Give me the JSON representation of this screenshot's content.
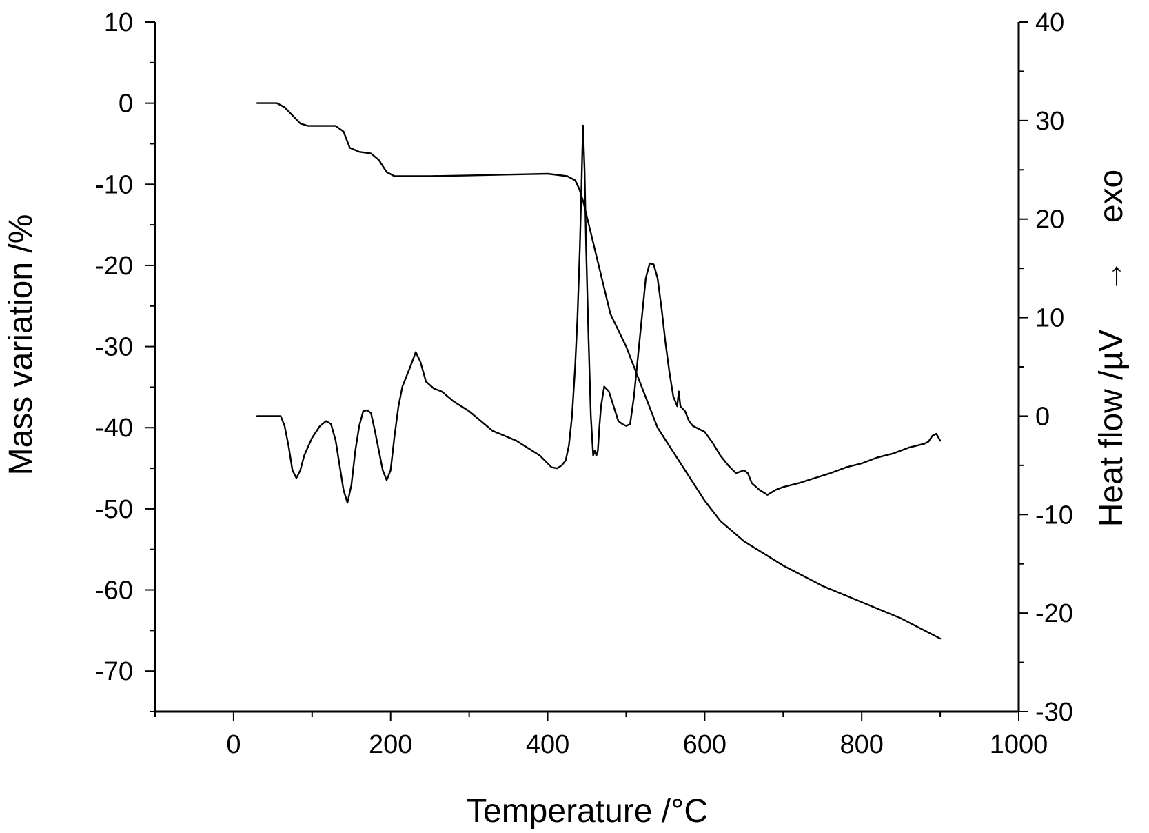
{
  "chart_data": {
    "type": "line",
    "title": "",
    "xlabel": "Temperature /°C",
    "ylabel_left": "Mass variation /%",
    "ylabel_right": "Heat flow /µV    →    exo",
    "xlim": [
      -100,
      1000
    ],
    "ylim_left": [
      -75,
      10
    ],
    "ylim_right": [
      -30,
      40
    ],
    "x_ticks": [
      "0",
      "200",
      "400",
      "600",
      "800",
      "1000"
    ],
    "y_left_ticks": [
      "10",
      "0",
      "-10",
      "-20",
      "-30",
      "-40",
      "-50",
      "-60",
      "-70"
    ],
    "y_right_ticks": [
      "40",
      "30",
      "20",
      "10",
      "0",
      "-10",
      "-20",
      "-30"
    ],
    "grid": false,
    "legend": "none",
    "line_color": "#000000",
    "series": [
      {
        "axis": "left",
        "x": [
          30,
          55,
          65,
          75,
          85,
          95,
          110,
          130,
          140,
          148,
          160,
          175,
          185,
          195,
          205,
          250,
          300,
          350,
          400,
          425,
          435,
          440,
          445,
          450,
          460,
          470,
          480,
          500,
          520,
          540,
          560,
          580,
          600,
          620,
          650,
          700,
          750,
          800,
          850,
          900
        ],
        "y": [
          0,
          0,
          -0.5,
          -1.5,
          -2.5,
          -2.8,
          -2.8,
          -2.8,
          -3.5,
          -5.5,
          -6,
          -6.2,
          -7,
          -8.5,
          -9,
          -9,
          -8.9,
          -8.8,
          -8.7,
          -9,
          -9.5,
          -10.5,
          -12,
          -14,
          -18,
          -22,
          -26,
          -30,
          -35,
          -40,
          -43,
          -46,
          -49,
          -51.5,
          -54,
          -57,
          -59.5,
          -61.5,
          -63.5,
          -66
        ]
      },
      {
        "axis": "right",
        "x": [
          30,
          60,
          65,
          70,
          75,
          80,
          85,
          90,
          100,
          110,
          118,
          124,
          130,
          135,
          140,
          145,
          150,
          155,
          160,
          165,
          170,
          175,
          180,
          185,
          190,
          195,
          200,
          205,
          210,
          215,
          220,
          225,
          232,
          238,
          245,
          255,
          265,
          280,
          300,
          330,
          360,
          390,
          405,
          412,
          418,
          423,
          427,
          431,
          435,
          438,
          441,
          443,
          445,
          447,
          449,
          452,
          455,
          458,
          460,
          462,
          464,
          466,
          468,
          472,
          478,
          484,
          490,
          495,
          500,
          505,
          510,
          515,
          520,
          525,
          530,
          535,
          540,
          545,
          550,
          555,
          560,
          565,
          567,
          569,
          575,
          580,
          585,
          590,
          600,
          610,
          620,
          630,
          640,
          650,
          655,
          660,
          670,
          680,
          690,
          700,
          720,
          740,
          760,
          780,
          800,
          820,
          840,
          860,
          870,
          880,
          885,
          890,
          895,
          900
        ],
        "y": [
          0,
          0,
          -1,
          -3,
          -5.5,
          -6.3,
          -5.5,
          -4,
          -2.2,
          -1,
          -0.5,
          -0.8,
          -2.5,
          -5,
          -7.5,
          -8.8,
          -7,
          -3.5,
          -1,
          0.5,
          0.6,
          0.3,
          -1.5,
          -3.5,
          -5.5,
          -6.5,
          -5.5,
          -2,
          1,
          3,
          4,
          5,
          6.5,
          5.5,
          3.5,
          2.8,
          2.5,
          1.5,
          0.5,
          -1.5,
          -2.5,
          -4,
          -5.2,
          -5.3,
          -5,
          -4.5,
          -3,
          0,
          5,
          10,
          17,
          23,
          29.5,
          25,
          17,
          8,
          0,
          -4,
          -3.5,
          -4,
          -3.5,
          -1,
          1,
          3,
          2.5,
          1,
          -0.5,
          -0.8,
          -1,
          -0.8,
          2,
          6,
          10,
          14,
          15.5,
          15.4,
          14,
          11,
          7.5,
          4.5,
          2,
          1,
          2.5,
          1,
          0.5,
          -0.5,
          -1,
          -1.2,
          -1.6,
          -2.7,
          -4,
          -5,
          -5.8,
          -5.5,
          -5.8,
          -6.8,
          -7.5,
          -8,
          -7.5,
          -7.2,
          -6.8,
          -6.3,
          -5.8,
          -5.2,
          -4.8,
          -4.2,
          -3.8,
          -3.2,
          -3,
          -2.8,
          -2.6,
          -2,
          -1.8,
          -2.5
        ]
      }
    ]
  }
}
